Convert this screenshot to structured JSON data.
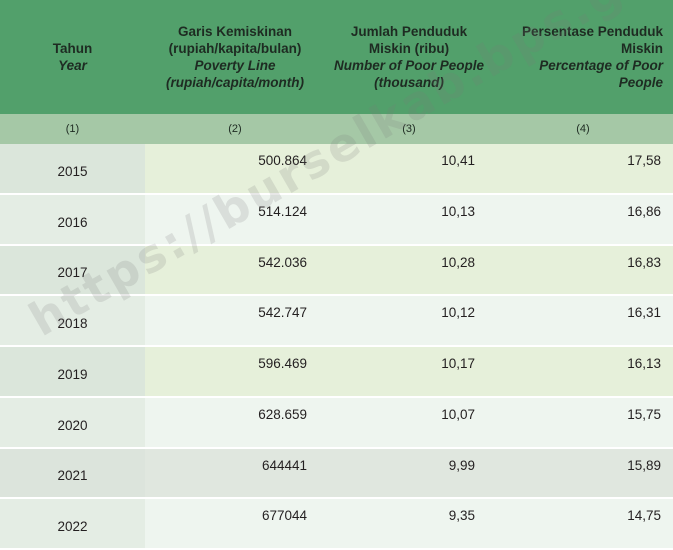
{
  "table": {
    "headers": [
      {
        "id": "text",
        "lines": [
          "Tahun"
        ],
        "en_lines": [
          "Year"
        ]
      },
      {
        "id": "text",
        "lines": [
          "Garis Kemiskinan",
          "(rupiah/kapita/bulan)"
        ],
        "en_lines": [
          "Poverty Line",
          "(rupiah/capita/month)"
        ]
      },
      {
        "id": "text",
        "lines": [
          "Jumlah Penduduk",
          "Miskin (ribu)"
        ],
        "en_lines": [
          "Number of Poor People",
          "(thousand)"
        ]
      },
      {
        "id": "text",
        "lines": [
          "Persentase Penduduk",
          "Miskin"
        ],
        "en_lines": [
          "Percentage of Poor People"
        ]
      }
    ],
    "index_row": [
      "(1)",
      "(2)",
      "(3)",
      "(4)"
    ],
    "rows": [
      {
        "year": "2015",
        "poverty_line": "500.864",
        "poor_people": "10,41",
        "percentage": "17,58"
      },
      {
        "year": "2016",
        "poverty_line": "514.124",
        "poor_people": "10,13",
        "percentage": "16,86"
      },
      {
        "year": "2017",
        "poverty_line": "542.036",
        "poor_people": "10,28",
        "percentage": "16,83"
      },
      {
        "year": "2018",
        "poverty_line": "542.747",
        "poor_people": "10,12",
        "percentage": "16,31"
      },
      {
        "year": "2019",
        "poverty_line": "596.469",
        "poor_people": "10,17",
        "percentage": "16,13"
      },
      {
        "year": "2020",
        "poverty_line": "628.659",
        "poor_people": "10,07",
        "percentage": "15,75"
      },
      {
        "year": "2021",
        "poverty_line": "644441",
        "poor_people": "9,99",
        "percentage": "15,89"
      },
      {
        "year": "2022",
        "poverty_line": "677044",
        "poor_people": "9,35",
        "percentage": "14,75"
      }
    ]
  },
  "watermark": "https://burselkab.bps.go.id",
  "colors": {
    "header": "#52a06b",
    "index_row": "#a5c8a6",
    "row_light": "#eef5ef",
    "row_tint": "#e6f0da"
  }
}
